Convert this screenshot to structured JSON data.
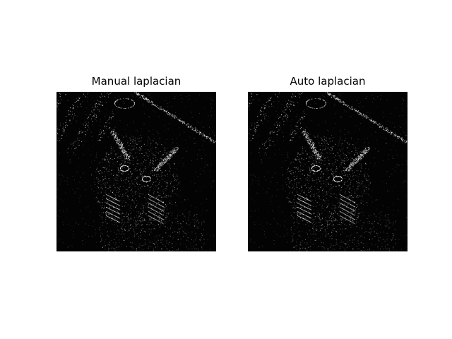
{
  "figure": {
    "panels": [
      {
        "title": "Manual laplacian"
      },
      {
        "title": "Auto laplacian"
      }
    ],
    "colors": {
      "background": "#ffffff",
      "image_background": "#030303",
      "edge_color": "#ffffff"
    }
  }
}
